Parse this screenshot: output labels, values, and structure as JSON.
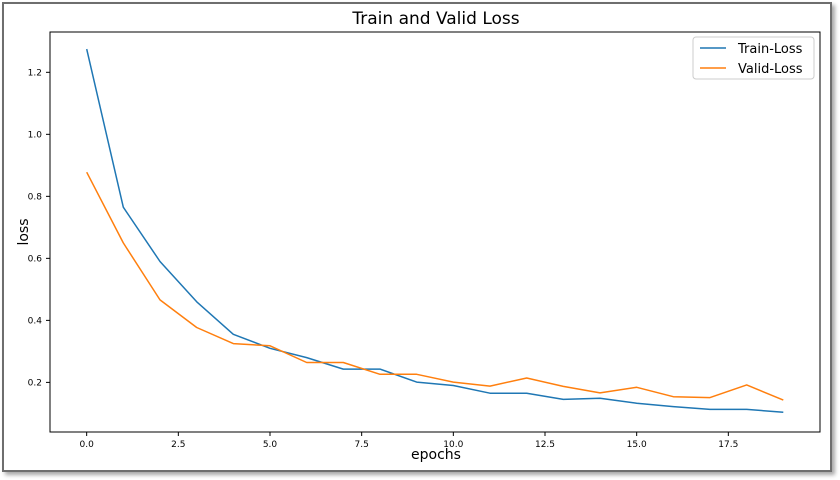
{
  "chart_data": {
    "type": "line",
    "title": "Train and Valid Loss",
    "xlabel": "epochs",
    "ylabel": "loss",
    "x": [
      0,
      1,
      2,
      3,
      4,
      5,
      6,
      7,
      8,
      9,
      10,
      11,
      12,
      13,
      14,
      15,
      16,
      17,
      18,
      19
    ],
    "xlim": [
      -1,
      20
    ],
    "ylim": [
      0.04,
      1.33
    ],
    "xticks": [
      0.0,
      2.5,
      5.0,
      7.5,
      10.0,
      12.5,
      15.0,
      17.5
    ],
    "xtick_labels": [
      "0.0",
      "2.5",
      "5.0",
      "7.5",
      "10.0",
      "12.5",
      "15.0",
      "17.5"
    ],
    "yticks": [
      0.2,
      0.4,
      0.6,
      0.8,
      1.0,
      1.2
    ],
    "ytick_labels": [
      "0.2",
      "0.4",
      "0.6",
      "0.8",
      "1.0",
      "1.2"
    ],
    "grid": false,
    "legend_position": "top-right",
    "series": [
      {
        "name": "Train-Loss",
        "color": "#1f77b4",
        "values": [
          1.275,
          0.765,
          0.59,
          0.46,
          0.355,
          0.31,
          0.28,
          0.243,
          0.243,
          0.201,
          0.19,
          0.165,
          0.165,
          0.145,
          0.149,
          0.133,
          0.122,
          0.113,
          0.113,
          0.104
        ]
      },
      {
        "name": "Valid-Loss",
        "color": "#ff7f0e",
        "values": [
          0.878,
          0.65,
          0.466,
          0.377,
          0.325,
          0.318,
          0.264,
          0.264,
          0.226,
          0.226,
          0.201,
          0.188,
          0.214,
          0.187,
          0.166,
          0.184,
          0.154,
          0.151,
          0.192,
          0.143
        ]
      }
    ]
  }
}
